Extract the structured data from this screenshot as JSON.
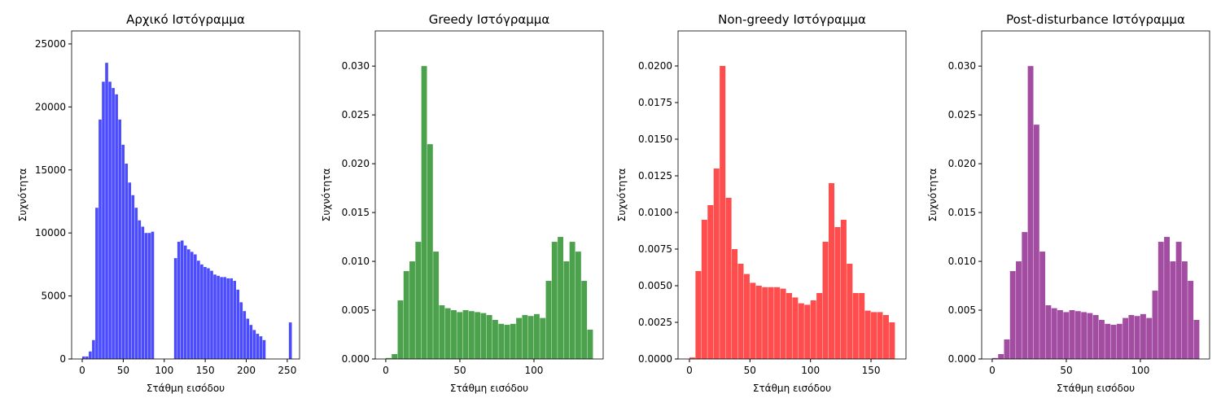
{
  "chart_data": [
    {
      "type": "histogram",
      "title": "Αρχικό Ιστόγραμμα",
      "xlabel": "Στάθμη εισόδου",
      "ylabel": "Συχνότητα",
      "color": "#4c4cff",
      "bins": [
        0,
        4,
        8,
        12,
        16,
        20,
        24,
        28,
        32,
        36,
        40,
        44,
        48,
        52,
        56,
        60,
        64,
        68,
        72,
        76,
        80,
        84,
        88,
        92,
        96,
        100,
        104,
        108,
        112,
        116,
        120,
        124,
        128,
        132,
        136,
        140,
        144,
        148,
        152,
        156,
        160,
        164,
        168,
        172,
        176,
        180,
        184,
        188,
        192,
        196,
        200,
        204,
        208,
        212,
        216,
        220,
        224,
        228,
        232,
        236,
        240,
        244,
        248,
        252,
        256
      ],
      "counts": [
        200,
        200,
        600,
        1500,
        12000,
        19000,
        22000,
        23500,
        22000,
        21500,
        21000,
        19000,
        17000,
        15500,
        14000,
        13000,
        12000,
        11000,
        10500,
        10000,
        10000,
        10100,
        0,
        0,
        0,
        0,
        0,
        0,
        8000,
        9300,
        9400,
        9000,
        8700,
        8500,
        8300,
        7800,
        7500,
        7300,
        7200,
        7000,
        6700,
        6600,
        6500,
        6500,
        6400,
        6400,
        6200,
        5500,
        4500,
        3800,
        3200,
        2700,
        2300,
        2000,
        1800,
        1500,
        0,
        0,
        0,
        0,
        0,
        0,
        0,
        2900
      ],
      "xlim": [
        -12.9,
        265
      ],
      "ylim": [
        0,
        26030
      ],
      "xticks": [
        0,
        50,
        100,
        150,
        200,
        250
      ],
      "yticks": [
        0,
        5000,
        10000,
        15000,
        20000,
        25000
      ]
    },
    {
      "type": "histogram",
      "title": "Greedy Ιστόγραμμα",
      "xlabel": "Στάθμη εισόδου",
      "ylabel": "Συχνότητα",
      "color": "#4ca24c",
      "bins": [
        0,
        4,
        8,
        12,
        16,
        20,
        24,
        28,
        32,
        36,
        40,
        44,
        48,
        52,
        56,
        60,
        64,
        68,
        72,
        76,
        80,
        84,
        88,
        92,
        96,
        100,
        104,
        108,
        112,
        116,
        120,
        124,
        128,
        132,
        136,
        140
      ],
      "counts": [
        0.0001,
        0.0005,
        0.006,
        0.009,
        0.01,
        0.012,
        0.03,
        0.022,
        0.011,
        0.0055,
        0.0052,
        0.005,
        0.0048,
        0.005,
        0.0049,
        0.0048,
        0.0047,
        0.0045,
        0.004,
        0.0036,
        0.0035,
        0.0036,
        0.0042,
        0.0045,
        0.0044,
        0.0046,
        0.0042,
        0.008,
        0.012,
        0.0125,
        0.01,
        0.012,
        0.011,
        0.008,
        0.003
      ],
      "xlim": [
        -7.1,
        146.7
      ],
      "ylim": [
        0,
        0.0336
      ],
      "xticks": [
        0,
        50,
        100
      ],
      "yticks": [
        {
          "value": 0,
          "label": "0.000"
        },
        {
          "value": 0.005,
          "label": "0.005"
        },
        {
          "value": 0.01,
          "label": "0.010"
        },
        {
          "value": 0.015,
          "label": "0.015"
        },
        {
          "value": 0.02,
          "label": "0.020"
        },
        {
          "value": 0.025,
          "label": "0.025"
        },
        {
          "value": 0.03,
          "label": "0.030"
        }
      ]
    },
    {
      "type": "histogram",
      "title": "Non-greedy Ιστόγραμμα",
      "xlabel": "Στάθμη εισόδου",
      "ylabel": "Συχνότητα",
      "color": "#ff4c4c",
      "bins": [
        0,
        5,
        10,
        15,
        20,
        25,
        30,
        35,
        40,
        45,
        50,
        55,
        60,
        65,
        70,
        75,
        80,
        85,
        90,
        95,
        100,
        105,
        110,
        115,
        120,
        125,
        130,
        135,
        140,
        145,
        150,
        155,
        160,
        165,
        170
      ],
      "counts": [
        0.0001,
        0.006,
        0.0095,
        0.0105,
        0.013,
        0.02,
        0.011,
        0.0075,
        0.0065,
        0.0058,
        0.0052,
        0.005,
        0.0049,
        0.0049,
        0.0049,
        0.0048,
        0.0045,
        0.0042,
        0.0038,
        0.0037,
        0.004,
        0.0045,
        0.008,
        0.012,
        0.009,
        0.0095,
        0.0065,
        0.0045,
        0.0045,
        0.0033,
        0.0032,
        0.0032,
        0.003,
        0.0025
      ],
      "xlim": [
        -9.4,
        178.9
      ],
      "ylim": [
        0,
        0.02239
      ],
      "xticks": [
        0,
        50,
        100,
        150
      ],
      "yticks": [
        {
          "value": 0,
          "label": "0.0000"
        },
        {
          "value": 0.0025,
          "label": "0.0025"
        },
        {
          "value": 0.005,
          "label": "0.0050"
        },
        {
          "value": 0.0075,
          "label": "0.0075"
        },
        {
          "value": 0.01,
          "label": "0.0100"
        },
        {
          "value": 0.0125,
          "label": "0.0125"
        },
        {
          "value": 0.015,
          "label": "0.0150"
        },
        {
          "value": 0.0175,
          "label": "0.0175"
        },
        {
          "value": 0.02,
          "label": "0.0200"
        }
      ]
    },
    {
      "type": "histogram",
      "title": "Post-disturbance Ιστόγραμμα",
      "xlabel": "Στάθμη εισόδου",
      "ylabel": "Συχνότητα",
      "color": "#a24ca2",
      "bins": [
        0,
        4,
        8,
        12,
        16,
        20,
        24,
        28,
        32,
        36,
        40,
        44,
        48,
        52,
        56,
        60,
        64,
        68,
        72,
        76,
        80,
        84,
        88,
        92,
        96,
        100,
        104,
        108,
        112,
        116,
        120,
        124,
        128,
        132,
        136,
        140
      ],
      "counts": [
        0.0001,
        0.0005,
        0.002,
        0.009,
        0.01,
        0.013,
        0.03,
        0.024,
        0.011,
        0.0055,
        0.0052,
        0.005,
        0.0048,
        0.005,
        0.0049,
        0.0048,
        0.0047,
        0.0045,
        0.004,
        0.0036,
        0.0035,
        0.0036,
        0.0042,
        0.0045,
        0.0044,
        0.0046,
        0.0042,
        0.007,
        0.012,
        0.0125,
        0.01,
        0.012,
        0.01,
        0.008,
        0.004
      ],
      "xlim": [
        -7.1,
        146.7
      ],
      "ylim": [
        0,
        0.0336
      ],
      "xticks": [
        0,
        50,
        100
      ],
      "yticks": [
        {
          "value": 0,
          "label": "0.000"
        },
        {
          "value": 0.005,
          "label": "0.005"
        },
        {
          "value": 0.01,
          "label": "0.010"
        },
        {
          "value": 0.015,
          "label": "0.015"
        },
        {
          "value": 0.02,
          "label": "0.020"
        },
        {
          "value": 0.025,
          "label": "0.025"
        },
        {
          "value": 0.03,
          "label": "0.030"
        }
      ]
    }
  ]
}
